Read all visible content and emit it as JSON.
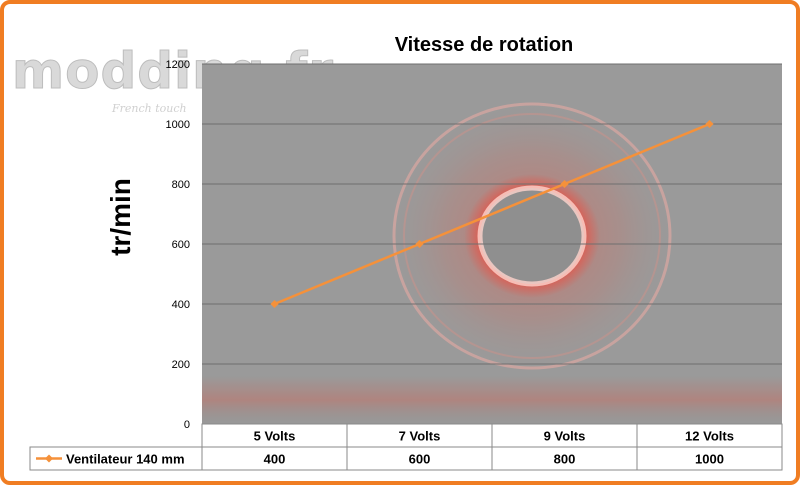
{
  "watermark": {
    "brand": "modding.fr",
    "tagline": "French touch"
  },
  "chart_data": {
    "type": "line",
    "title": "Vitesse de rotation",
    "ylabel": "tr/min",
    "xlabel": "",
    "ylim": [
      0,
      1200
    ],
    "yticks": [
      0,
      200,
      400,
      600,
      800,
      1000,
      1200
    ],
    "categories": [
      "5 Volts",
      "7 Volts",
      "9 Volts",
      "12 Volts"
    ],
    "series": [
      {
        "name": "Ventilateur 140 mm",
        "values": [
          400,
          600,
          800,
          1000
        ],
        "color": "#f5913a"
      }
    ],
    "grid": true,
    "legend": "data-table",
    "colors": {
      "frame": "#f07d22",
      "plot_bg": "#9a9a9a",
      "glow": "#ff3a2a",
      "grid": "#6f6f6f"
    }
  }
}
